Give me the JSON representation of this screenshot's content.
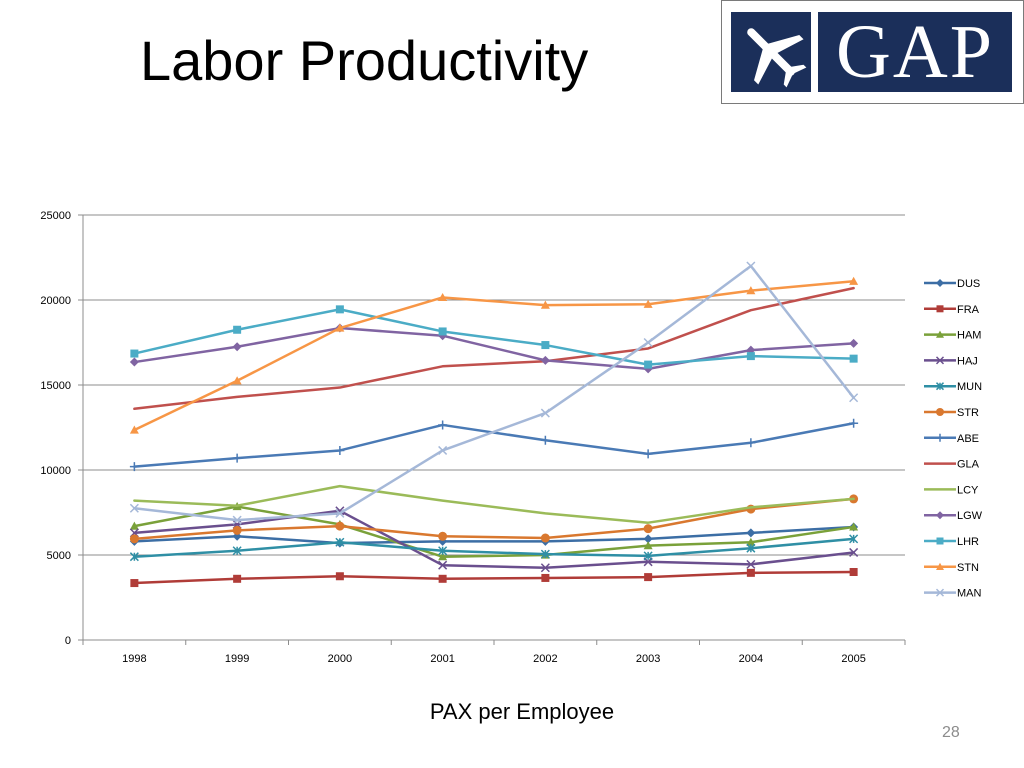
{
  "slide": {
    "title": "Labor Productivity",
    "caption": "PAX per Employee",
    "page_number": "28",
    "logo_text": "GAP",
    "brand_color": "#1b2f5a"
  },
  "chart_data": {
    "type": "line",
    "title": "",
    "xlabel": "",
    "ylabel": "",
    "categories": [
      "1998",
      "1999",
      "2000",
      "2001",
      "2002",
      "2003",
      "2004",
      "2005"
    ],
    "ylim": [
      0,
      25000
    ],
    "yticks": [
      "0",
      "5000",
      "10000",
      "15000",
      "20000",
      "25000"
    ],
    "grid": "horizontal",
    "legend_position": "right",
    "series": [
      {
        "name": "DUS",
        "color": "#3c6ea5",
        "marker": "diamond",
        "values": [
          5800,
          6100,
          5700,
          5800,
          5800,
          5950,
          6300,
          6650
        ]
      },
      {
        "name": "FRA",
        "color": "#b03c38",
        "marker": "square",
        "values": [
          3350,
          3600,
          3750,
          3600,
          3650,
          3700,
          3950,
          4000
        ]
      },
      {
        "name": "HAM",
        "color": "#7aa13a",
        "marker": "triangle",
        "values": [
          6700,
          7850,
          6800,
          4900,
          5000,
          5550,
          5750,
          6650
        ]
      },
      {
        "name": "HAJ",
        "color": "#6a4f8e",
        "marker": "x",
        "values": [
          6300,
          6800,
          7600,
          4400,
          4250,
          4600,
          4450,
          5150
        ]
      },
      {
        "name": "MUN",
        "color": "#2f8fa5",
        "marker": "star",
        "values": [
          4900,
          5250,
          5750,
          5250,
          5050,
          4950,
          5400,
          5950
        ]
      },
      {
        "name": "STR",
        "color": "#d9782f",
        "marker": "circle",
        "values": [
          5950,
          6450,
          6700,
          6100,
          6000,
          6550,
          7700,
          8300
        ]
      },
      {
        "name": "ABE",
        "color": "#4a7ab5",
        "marker": "plus",
        "values": [
          10200,
          10700,
          11150,
          12650,
          11750,
          10950,
          11600,
          12750
        ]
      },
      {
        "name": "GLA",
        "color": "#c0504d",
        "marker": "none",
        "values": [
          13600,
          14300,
          14850,
          16100,
          16400,
          17150,
          19400,
          20700
        ]
      },
      {
        "name": "LCY",
        "color": "#9bbb59",
        "marker": "none",
        "values": [
          8200,
          7900,
          9050,
          8200,
          7450,
          6900,
          7800,
          8300
        ]
      },
      {
        "name": "LGW",
        "color": "#8064a2",
        "marker": "diamond",
        "values": [
          16350,
          17250,
          18350,
          17900,
          16450,
          15950,
          17050,
          17450
        ]
      },
      {
        "name": "LHR",
        "color": "#4bacc6",
        "marker": "square",
        "values": [
          16850,
          18250,
          19450,
          18150,
          17350,
          16200,
          16700,
          16550
        ]
      },
      {
        "name": "STN",
        "color": "#f79646",
        "marker": "triangle",
        "values": [
          12350,
          15250,
          18350,
          20150,
          19700,
          19750,
          20550,
          21100
        ]
      },
      {
        "name": "MAN",
        "color": "#a5b8d8",
        "marker": "x",
        "values": [
          7750,
          7050,
          7450,
          11150,
          13350,
          17500,
          22000,
          14250
        ]
      }
    ]
  }
}
